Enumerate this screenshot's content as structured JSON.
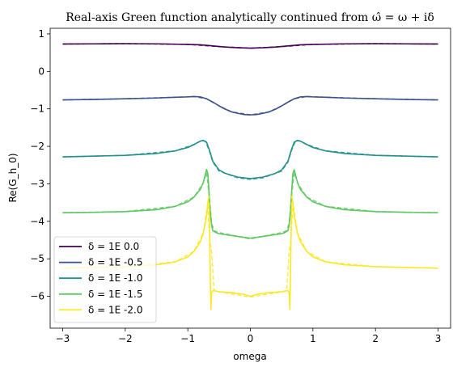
{
  "chart_data": {
    "type": "line",
    "title": "Real-axis Green function analytically continued from ω̂ = ω + iδ",
    "xlabel": "omega",
    "ylabel": "Re(G_h_0)",
    "xlim": [
      -3.2,
      3.2
    ],
    "ylim": [
      -6.85,
      1.15
    ],
    "x_ticks": [
      -3,
      -2,
      -1,
      0,
      1,
      2,
      3
    ],
    "y_ticks": [
      1,
      0,
      -1,
      -2,
      -3,
      -4,
      -5,
      -6
    ],
    "x_tick_labels": [
      "−3",
      "−2",
      "−1",
      "0",
      "1",
      "2",
      "3"
    ],
    "y_tick_labels": [
      "1",
      "0",
      "−1",
      "−2",
      "−3",
      "−4",
      "−5",
      "−6"
    ],
    "legend_position": "lower-left",
    "grid": false,
    "series": [
      {
        "name": "δ = 1E 0.0",
        "color": "#440154",
        "x": [
          -3,
          -2.5,
          -2,
          -1.5,
          -1,
          -0.8,
          -0.6,
          -0.4,
          -0.2,
          0,
          0.2,
          0.4,
          0.6,
          0.8,
          1,
          1.5,
          2,
          2.5,
          3
        ],
        "values": [
          0.73,
          0.735,
          0.74,
          0.735,
          0.72,
          0.71,
          0.68,
          0.65,
          0.63,
          0.62,
          0.63,
          0.65,
          0.68,
          0.71,
          0.72,
          0.735,
          0.74,
          0.735,
          0.73
        ]
      },
      {
        "name": "δ = 1E -0.5",
        "color": "#3b528b",
        "x": [
          -3,
          -2.5,
          -2,
          -1.5,
          -1.2,
          -1,
          -0.9,
          -0.8,
          -0.7,
          -0.6,
          -0.5,
          -0.4,
          -0.3,
          -0.2,
          -0.1,
          0,
          0.1,
          0.2,
          0.3,
          0.4,
          0.5,
          0.6,
          0.7,
          0.8,
          0.9,
          1,
          1.2,
          1.5,
          2,
          2.5,
          3
        ],
        "values": [
          -0.76,
          -0.75,
          -0.73,
          -0.71,
          -0.69,
          -0.68,
          -0.67,
          -0.68,
          -0.73,
          -0.82,
          -0.92,
          -1.01,
          -1.08,
          -1.12,
          -1.15,
          -1.16,
          -1.15,
          -1.12,
          -1.08,
          -1.01,
          -0.92,
          -0.82,
          -0.73,
          -0.68,
          -0.67,
          -0.68,
          -0.69,
          -0.71,
          -0.73,
          -0.75,
          -0.76
        ]
      },
      {
        "name": "δ = 1E -1.0",
        "color": "#21918c",
        "x": [
          -3,
          -2.5,
          -2,
          -1.5,
          -1.2,
          -1,
          -0.9,
          -0.8,
          -0.75,
          -0.7,
          -0.65,
          -0.6,
          -0.5,
          -0.4,
          -0.2,
          0,
          0.2,
          0.4,
          0.5,
          0.6,
          0.65,
          0.7,
          0.75,
          0.8,
          0.9,
          1,
          1.2,
          1.5,
          2,
          2.5,
          3
        ],
        "values": [
          -2.28,
          -2.26,
          -2.24,
          -2.19,
          -2.12,
          -2.03,
          -1.95,
          -1.86,
          -1.84,
          -1.89,
          -2.12,
          -2.4,
          -2.63,
          -2.72,
          -2.82,
          -2.86,
          -2.82,
          -2.72,
          -2.63,
          -2.4,
          -2.12,
          -1.89,
          -1.84,
          -1.86,
          -1.95,
          -2.03,
          -2.12,
          -2.19,
          -2.24,
          -2.26,
          -2.28
        ]
      },
      {
        "name": "δ = 1E -1.5",
        "color": "#5ec962",
        "x": [
          -3,
          -2.5,
          -2,
          -1.5,
          -1.2,
          -1,
          -0.9,
          -0.8,
          -0.75,
          -0.7,
          -0.68,
          -0.66,
          -0.64,
          -0.62,
          -0.6,
          -0.55,
          -0.5,
          -0.3,
          0,
          0.3,
          0.5,
          0.55,
          0.6,
          0.62,
          0.64,
          0.66,
          0.68,
          0.7,
          0.75,
          0.8,
          0.9,
          1,
          1.2,
          1.5,
          2,
          2.5,
          3
        ],
        "values": [
          -3.77,
          -3.76,
          -3.74,
          -3.69,
          -3.6,
          -3.48,
          -3.35,
          -3.15,
          -2.95,
          -2.62,
          -2.72,
          -3.2,
          -3.75,
          -4.1,
          -4.25,
          -4.3,
          -4.33,
          -4.38,
          -4.45,
          -4.38,
          -4.33,
          -4.3,
          -4.25,
          -4.1,
          -3.75,
          -3.2,
          -2.72,
          -2.62,
          -2.95,
          -3.15,
          -3.35,
          -3.48,
          -3.6,
          -3.69,
          -3.74,
          -3.76,
          -3.77
        ]
      },
      {
        "name": "δ = 1E -2.0",
        "color": "#fde725",
        "x": [
          -3,
          -2.5,
          -2,
          -1.5,
          -1.2,
          -1,
          -0.9,
          -0.8,
          -0.75,
          -0.7,
          -0.68,
          -0.66,
          -0.65,
          -0.64,
          -0.63,
          -0.62,
          -0.6,
          -0.55,
          -0.5,
          -0.3,
          -0.1,
          0,
          0.1,
          0.3,
          0.5,
          0.55,
          0.6,
          0.62,
          0.63,
          0.64,
          0.65,
          0.66,
          0.68,
          0.7,
          0.75,
          0.8,
          0.9,
          1,
          1.2,
          1.5,
          2,
          2.5,
          3
        ],
        "values": [
          -5.25,
          -5.23,
          -5.21,
          -5.16,
          -5.08,
          -4.95,
          -4.8,
          -4.55,
          -4.3,
          -3.85,
          -3.5,
          -3.3,
          -4.4,
          -5.6,
          -6.35,
          -5.9,
          -5.85,
          -5.86,
          -5.88,
          -5.9,
          -5.95,
          -6.0,
          -5.95,
          -5.9,
          -5.88,
          -5.86,
          -5.85,
          -5.9,
          -6.35,
          -5.6,
          -4.4,
          -3.3,
          -3.5,
          -3.85,
          -4.3,
          -4.55,
          -4.8,
          -4.95,
          -5.08,
          -5.16,
          -5.21,
          -5.23,
          -5.25
        ]
      }
    ],
    "dashed_series": [
      {
        "color": "#440154",
        "x": [
          -3,
          -2,
          -1,
          -0.5,
          0,
          0.5,
          1,
          2,
          3
        ],
        "values": [
          0.73,
          0.74,
          0.72,
          0.66,
          0.62,
          0.66,
          0.72,
          0.74,
          0.73
        ]
      },
      {
        "color": "#3b528b",
        "x": [
          -3,
          -2,
          -1.2,
          -0.9,
          -0.7,
          -0.5,
          -0.3,
          0,
          0.3,
          0.5,
          0.7,
          0.9,
          1.2,
          2,
          3
        ],
        "values": [
          -0.76,
          -0.73,
          -0.69,
          -0.67,
          -0.73,
          -0.92,
          -1.08,
          -1.16,
          -1.08,
          -0.92,
          -0.73,
          -0.67,
          -0.69,
          -0.73,
          -0.76
        ]
      },
      {
        "color": "#21918c",
        "x": [
          -3,
          -2,
          -1.2,
          -0.9,
          -0.78,
          -0.72,
          -0.66,
          -0.6,
          -0.5,
          -0.2,
          0,
          0.2,
          0.5,
          0.6,
          0.66,
          0.72,
          0.78,
          0.9,
          1.2,
          2,
          3
        ],
        "values": [
          -2.28,
          -2.24,
          -2.12,
          -1.95,
          -1.85,
          -1.86,
          -2.1,
          -2.42,
          -2.66,
          -2.84,
          -2.88,
          -2.84,
          -2.66,
          -2.42,
          -2.1,
          -1.86,
          -1.85,
          -1.95,
          -2.12,
          -2.24,
          -2.28
        ]
      },
      {
        "color": "#5ec962",
        "x": [
          -3,
          -2,
          -1.2,
          -0.9,
          -0.76,
          -0.7,
          -0.66,
          -0.62,
          -0.58,
          -0.5,
          0,
          0.5,
          0.58,
          0.62,
          0.66,
          0.7,
          0.76,
          0.9,
          1.2,
          2,
          3
        ],
        "values": [
          -3.77,
          -3.74,
          -3.6,
          -3.35,
          -3.0,
          -2.7,
          -3.3,
          -4.05,
          -4.25,
          -4.3,
          -4.47,
          -4.3,
          -4.25,
          -4.05,
          -3.3,
          -2.7,
          -3.0,
          -3.35,
          -3.6,
          -3.74,
          -3.77
        ]
      },
      {
        "color": "#fde725",
        "x": [
          -3,
          -2,
          -1.2,
          -0.9,
          -0.75,
          -0.68,
          -0.66,
          -0.64,
          -0.62,
          -0.58,
          -0.5,
          0,
          0.5,
          0.58,
          0.62,
          0.64,
          0.66,
          0.68,
          0.75,
          0.9,
          1.2,
          2,
          3
        ],
        "values": [
          -5.25,
          -5.21,
          -5.08,
          -4.8,
          -4.3,
          -3.5,
          -4.2,
          -4.6,
          -4.8,
          -5.85,
          -5.88,
          -6.02,
          -5.88,
          -5.85,
          -4.8,
          -4.6,
          -4.2,
          -3.5,
          -4.3,
          -4.8,
          -5.08,
          -5.21,
          -5.25
        ]
      }
    ]
  }
}
